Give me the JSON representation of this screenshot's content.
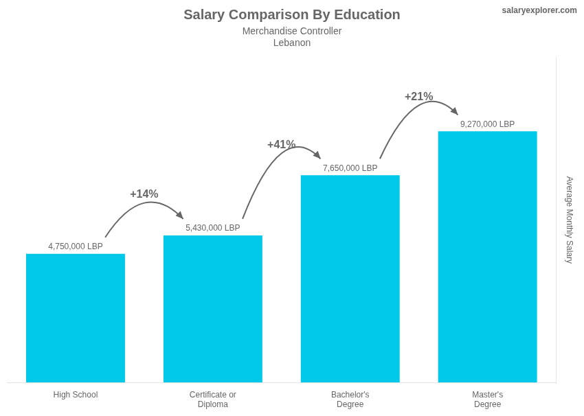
{
  "chart_data": {
    "type": "bar",
    "title": "Salary Comparison By Education",
    "subtitle": [
      "Merchandise Controller",
      "Lebanon"
    ],
    "ylabel": "Average Monthly Salary",
    "categories": [
      "High School",
      "Certificate or\nDiploma",
      "Bachelor's\nDegree",
      "Master's\nDegree"
    ],
    "values": [
      4750000,
      5430000,
      7650000,
      9270000
    ],
    "value_labels": [
      "4,750,000 LBP",
      "5,430,000 LBP",
      "7,650,000 LBP",
      "9,270,000 LBP"
    ],
    "data_labels": true,
    "color": "#00c8e8",
    "ylim": [
      0,
      12000000
    ],
    "grid": false,
    "tick_labels": "x",
    "annotations": [
      {
        "text": "salaryexplorer.com"
      },
      {
        "text": "+14%",
        "from": "High School",
        "to": "Certificate or\nDiploma"
      },
      {
        "text": "+41%",
        "from": "Certificate or\nDiploma",
        "to": "Bachelor's\nDegree"
      },
      {
        "text": "+21%",
        "from": "Bachelor's\nDegree",
        "to": "Master's\nDegree"
      }
    ]
  }
}
